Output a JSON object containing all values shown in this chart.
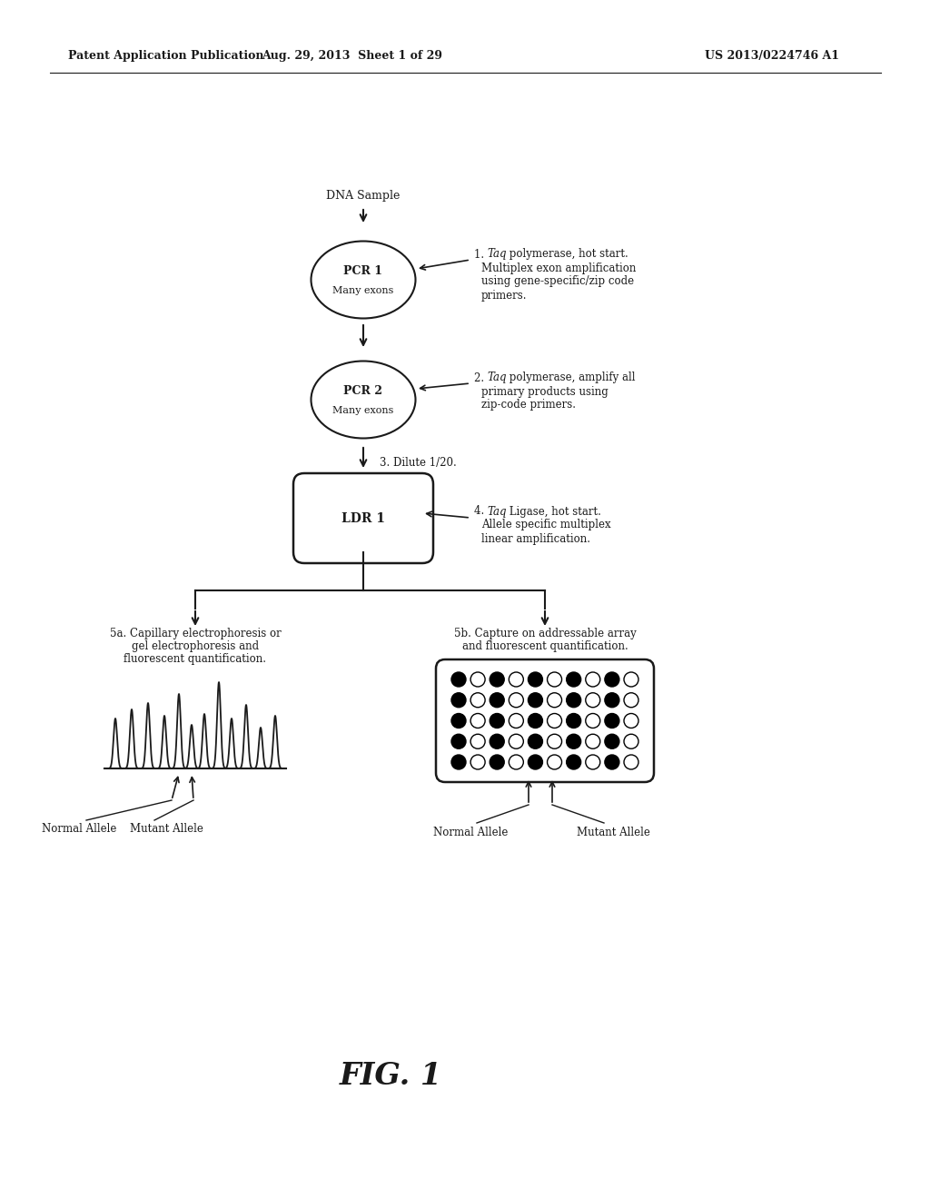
{
  "header_left": "Patent Application Publication",
  "header_mid": "Aug. 29, 2013  Sheet 1 of 29",
  "header_right": "US 2013/0224746 A1",
  "fig_label": "FIG. 1",
  "dna_label": "DNA Sample",
  "step3_text": "3. Dilute 1/20.",
  "normal_allele": "Normal Allele",
  "mutant_allele": "Mutant Allele",
  "bg_color": "#ffffff",
  "text_color": "#1a1a1a",
  "line_color": "#1a1a1a",
  "dot_pattern": [
    [
      "black",
      "white",
      "black",
      "white",
      "black",
      "white",
      "black",
      "white",
      "black",
      "white"
    ],
    [
      "black",
      "white",
      "black",
      "white",
      "black",
      "white",
      "black",
      "white",
      "black",
      "white"
    ],
    [
      "black",
      "white",
      "black",
      "white",
      "black",
      "white",
      "black",
      "white",
      "black",
      "white"
    ],
    [
      "black",
      "white",
      "black",
      "white",
      "black",
      "white",
      "black",
      "white",
      "black",
      "white"
    ],
    [
      "black",
      "white",
      "black",
      "white",
      "black",
      "white",
      "black",
      "white",
      "black",
      "white"
    ]
  ],
  "step5a_lines": [
    "5a. Capillary electrophoresis or",
    "gel electrophoresis and",
    "fluorescent quantification."
  ],
  "step5b_lines": [
    "5b. Capture on addressable array",
    "and fluorescent quantification."
  ],
  "step1_line1": "1. ",
  "step1_taq": "Taq",
  "step1_rest1": " polymerase, hot start.",
  "step1_line2": "Multiplex exon amplification",
  "step1_line3": "using gene-specific/zip code",
  "step1_line4": "primers.",
  "step2_line1": "2. ",
  "step2_taq": "Taq",
  "step2_rest1": " polymerase, amplify all",
  "step2_line2": "primary products using",
  "step2_line3": "zip-code primers.",
  "step4_line1": "4. ",
  "step4_taq": "Taq",
  "step4_rest1": " Ligase, hot start.",
  "step4_line2": "Allele specific multiplex",
  "step4_line3": "linear amplification."
}
